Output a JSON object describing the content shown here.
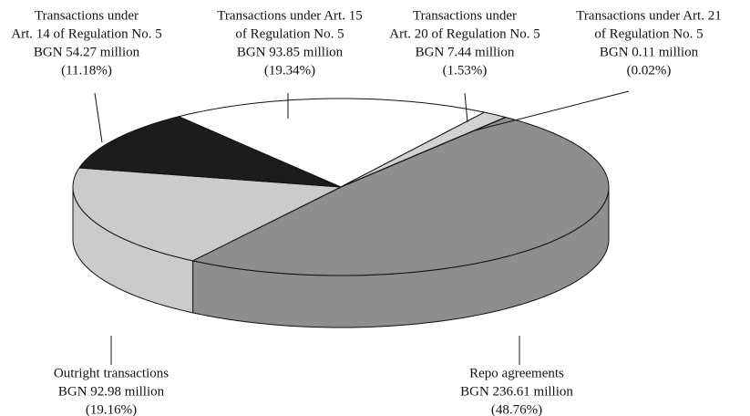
{
  "chart_data": {
    "type": "pie",
    "categories": [
      [
        "Repo agreements"
      ],
      [
        "Outright transactions"
      ],
      [
        "Transactions under",
        "Art. 14 of Regulation No. 5"
      ],
      [
        "Transactions under Art. 15",
        "of Regulation No. 5"
      ],
      [
        "Transactions under",
        "Art. 20 of Regulation No. 5"
      ],
      [
        "Transactions under Art. 21",
        "of Regulation No. 5"
      ]
    ],
    "values": [
      236.61,
      92.98,
      54.27,
      93.85,
      7.44,
      0.11
    ],
    "value_labels": [
      "BGN 236.61 million",
      "BGN 92.98 million",
      "BGN 54.27 million",
      "BGN 93.85 million",
      "BGN 7.44 million",
      "BGN 0.11 million"
    ],
    "percents": [
      48.76,
      19.16,
      11.18,
      19.34,
      1.53,
      0.02
    ],
    "percent_labels": [
      "(48.76%)",
      "(19.16%)",
      "(11.18%)",
      "(19.34%)",
      "(1.53%)",
      "(0.02%)"
    ],
    "colors": [
      "#8e8e8e",
      "#cbcbcb",
      "#1c1c1c",
      "#ffffff",
      "#d2d2d2",
      "#ffffff"
    ]
  }
}
